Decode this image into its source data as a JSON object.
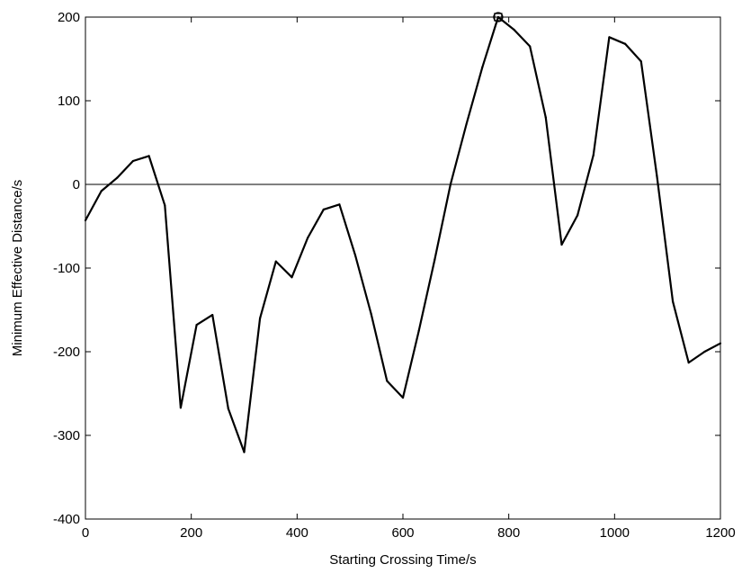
{
  "chart_data": {
    "type": "line",
    "title": "",
    "xlabel": "Starting Crossing Time/s",
    "ylabel": "Minimum Effective Distance/s",
    "xlim": [
      0,
      1200
    ],
    "ylim": [
      -400,
      200
    ],
    "x_ticks": [
      0,
      200,
      400,
      600,
      800,
      1000,
      1200
    ],
    "y_ticks": [
      -400,
      -300,
      -200,
      -100,
      0,
      100,
      200
    ],
    "x_tick_labels": [
      "0",
      "200",
      "400",
      "600",
      "800",
      "1000",
      "1200"
    ],
    "y_tick_labels": [
      "-400",
      "-300",
      "-200",
      "-100",
      "0",
      "100",
      "200"
    ],
    "grid": false,
    "reference_line_y": 0,
    "series": [
      {
        "color": "#000000",
        "x": [
          0,
          30,
          60,
          90,
          120,
          150,
          180,
          210,
          240,
          270,
          300,
          330,
          360,
          390,
          420,
          450,
          480,
          510,
          540,
          570,
          600,
          630,
          660,
          690,
          720,
          750,
          780,
          810,
          840,
          870,
          900,
          930,
          960,
          990,
          1020,
          1050,
          1080,
          1110,
          1140,
          1170,
          1200
        ],
        "y": [
          -43,
          -8,
          8,
          28,
          34,
          -25,
          -267,
          -168,
          -156,
          -268,
          -320,
          -160,
          -92,
          -111,
          -64,
          -30,
          -24,
          -85,
          -155,
          -235,
          -255,
          -175,
          -90,
          0,
          72,
          140,
          200,
          185,
          165,
          80,
          -72,
          -37,
          35,
          176,
          168,
          147,
          10,
          -140,
          -213,
          -200,
          -190
        ]
      }
    ],
    "marker": {
      "x": 780,
      "y": 200,
      "shape": "circle-square"
    }
  }
}
